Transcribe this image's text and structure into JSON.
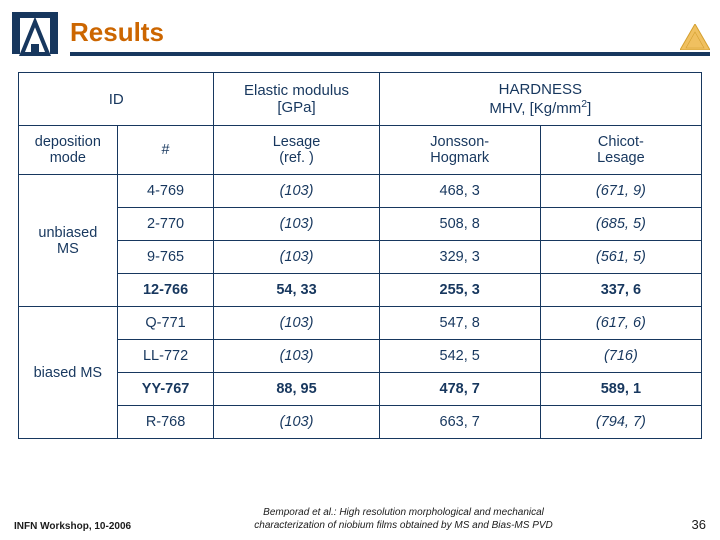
{
  "title": "Results",
  "table": {
    "header": {
      "id": "ID",
      "elastic": "Elastic modulus\n[GPa]",
      "hardness_pre": "HARDNESS\nMHV, [Kg/mm",
      "hardness_sup": "2",
      "hardness_post": "]"
    },
    "sub": {
      "depmode": "deposition\nmode",
      "num": "#",
      "lesage": "Lesage\n(ref. )",
      "jonsson": "Jonsson-\nHogmark",
      "chicot": "Chicot-\nLesage"
    },
    "groups": [
      {
        "label": "unbiased\nMS",
        "rows": [
          {
            "id": "4-769",
            "em": "(103)",
            "jh": "468, 3",
            "cl": "(671, 9)",
            "em_it": true,
            "cl_it": true
          },
          {
            "id": "2-770",
            "em": "(103)",
            "jh": "508, 8",
            "cl": "(685, 5)",
            "em_it": true,
            "cl_it": true
          },
          {
            "id": "9-765",
            "em": "(103)",
            "jh": "329, 3",
            "cl": "(561, 5)",
            "em_it": true,
            "cl_it": true
          },
          {
            "id": "12-766",
            "em": "54, 33",
            "jh": "255, 3",
            "cl": "337, 6",
            "bold": true
          }
        ]
      },
      {
        "label": "biased MS",
        "rows": [
          {
            "id": "Q-771",
            "em": "(103)",
            "jh": "547, 8",
            "cl": "(617, 6)",
            "em_it": true,
            "cl_it": true
          },
          {
            "id": "LL-772",
            "em": "(103)",
            "jh": "542, 5",
            "cl": "(716)",
            "em_it": true,
            "cl_it": true
          },
          {
            "id": "YY-767",
            "em": "88, 95",
            "jh": "478, 7",
            "cl": "589, 1",
            "bold": true
          },
          {
            "id": "R-768",
            "em": "(103)",
            "jh": "663, 7",
            "cl": "(794, 7)",
            "em_it": true,
            "cl_it": true
          }
        ]
      }
    ]
  },
  "footer": {
    "left": "INFN Workshop, 10-2006",
    "cite1": "Bemporad et al.: High resolution morphological and mechanical",
    "cite2": "characterization of niobium films obtained by MS and Bias-MS PVD",
    "num": "36"
  },
  "colors": {
    "accent": "#17375e",
    "title": "#cc6600",
    "triangle": "#f0c060"
  }
}
